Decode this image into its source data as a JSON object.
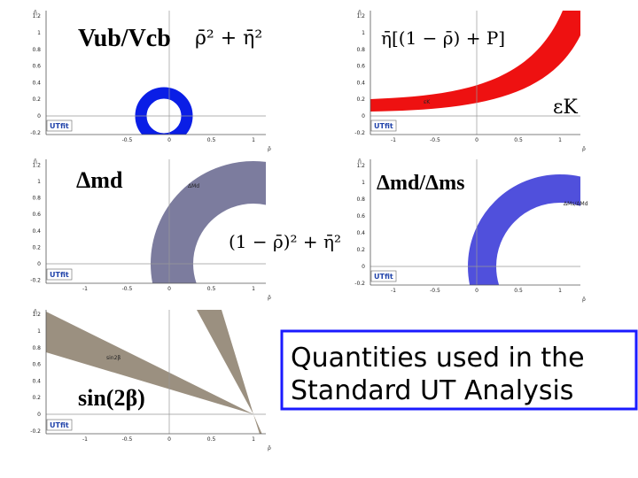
{
  "panels": [
    {
      "title": "Vub/Vcb",
      "formula": "ρ̄² + η̄²",
      "x_label": "ρ̄",
      "y_label": "η̄",
      "logo": "UTfit",
      "xticks": [
        "-0.5",
        "0",
        "0.5",
        "1"
      ],
      "yticks": [
        "1.2",
        "1",
        "0.8",
        "0.6",
        "0.4",
        "0.2",
        "0",
        "-0.2"
      ]
    },
    {
      "formula": "η̄[(1 − ρ̄) + P]",
      "title": "εK",
      "band_label": "εK",
      "x_label": "ρ̄",
      "y_label": "η̄",
      "logo": "UTfit",
      "xticks": [
        "-1",
        "-0.5",
        "0",
        "0.5",
        "1"
      ],
      "yticks": [
        "1.2",
        "1",
        "0.8",
        "0.6",
        "0.4",
        "0.2",
        "0",
        "-0.2"
      ]
    },
    {
      "title": "Δmd",
      "band_label": "ΔMd",
      "formula": "(1 − ρ̄)² + η̄²",
      "x_label": "ρ̄",
      "y_label": "η̄",
      "logo": "UTfit",
      "xticks": [
        "-1",
        "-0.5",
        "0",
        "0.5",
        "1"
      ],
      "yticks": [
        "1.2",
        "1",
        "0.8",
        "0.6",
        "0.4",
        "0.2",
        "0",
        "-0.2"
      ]
    },
    {
      "title": "Δmd/Δms",
      "band_label": "ΔMs/ΔMd",
      "x_label": "ρ̄",
      "y_label": "η̄",
      "logo": "UTfit",
      "xticks": [
        "-1",
        "-0.5",
        "0",
        "0.5",
        "1"
      ],
      "yticks": [
        "1.2",
        "1",
        "0.8",
        "0.6",
        "0.4",
        "0.2",
        "0",
        "-0.2"
      ]
    },
    {
      "title": "sin(2β)",
      "band_label": "sin2β",
      "x_label": "ρ̄",
      "y_label": "η̄",
      "logo": "UTfit",
      "xticks": [
        "-1",
        "-0.5",
        "0",
        "0.5",
        "1"
      ],
      "yticks": [
        "1.2",
        "1",
        "0.8",
        "0.6",
        "0.4",
        "0.2",
        "0",
        "-0.2"
      ]
    }
  ],
  "note": {
    "lines": [
      "Quantities used in the",
      "Standard UT Analysis"
    ]
  }
}
